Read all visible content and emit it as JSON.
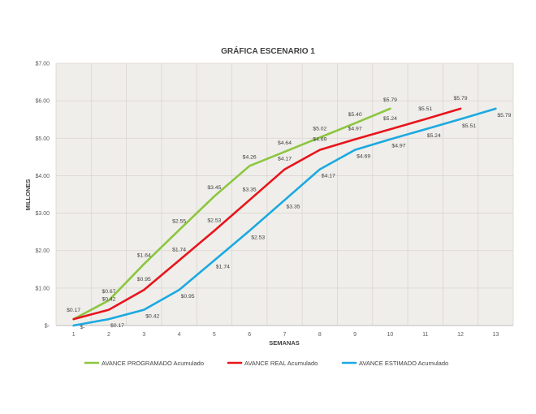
{
  "chart_data": {
    "type": "line",
    "title": "GRÁFICA ESCENARIO 1",
    "xlabel": "SEMANAS",
    "ylabel": "MILLONES",
    "x": [
      1,
      2,
      3,
      4,
      5,
      6,
      7,
      8,
      9,
      10,
      11,
      12,
      13
    ],
    "xlim": [
      0.5,
      13.5
    ],
    "ylim": [
      0,
      7
    ],
    "y_ticks": [
      {
        "value": 0,
        "label": "$-"
      },
      {
        "value": 1,
        "label": "$1.00"
      },
      {
        "value": 2,
        "label": "$2.00"
      },
      {
        "value": 3,
        "label": "$3.00"
      },
      {
        "value": 4,
        "label": "$4.00"
      },
      {
        "value": 5,
        "label": "$5.00"
      },
      {
        "value": 6,
        "label": "$6.00"
      },
      {
        "value": 7,
        "label": "$7.00"
      }
    ],
    "grid": true,
    "legend_position": "bottom",
    "background": "#efeeea",
    "grid_color": "#dcd4cf",
    "series": [
      {
        "name": "AVANCE PROGRAMADO Acumulado",
        "color": "#8cc63f",
        "x": [
          1,
          2,
          3,
          4,
          5,
          6,
          7,
          8,
          9,
          10
        ],
        "values": [
          0.17,
          0.67,
          1.64,
          2.55,
          3.45,
          4.26,
          4.64,
          5.02,
          5.4,
          5.79
        ],
        "labels": [
          "$0.17",
          "$0.67",
          "$1.64",
          "$2.55",
          "$3.45",
          "$4.26",
          "$4.64",
          "$5.02",
          "$5.40",
          "$5.79"
        ]
      },
      {
        "name": "AVANCE REAL Acumulado",
        "color": "#e8141c",
        "x": [
          1,
          2,
          3,
          4,
          5,
          6,
          7,
          8,
          9,
          10,
          11,
          12
        ],
        "values": [
          0.17,
          0.42,
          0.95,
          1.74,
          2.53,
          3.35,
          4.17,
          4.69,
          4.97,
          5.24,
          5.51,
          5.79
        ],
        "labels": [
          "",
          "$0.42",
          "$0.95",
          "$1.74",
          "$2.53",
          "$3.35",
          "$4.17",
          "$4.69",
          "$4.97",
          "$5.24",
          "$5.51",
          "$5.79"
        ]
      },
      {
        "name": "AVANCE ESTIMADO Acumulado",
        "color": "#1ba9e1",
        "x": [
          1,
          2,
          3,
          4,
          5,
          6,
          7,
          8,
          9,
          10,
          11,
          12,
          13
        ],
        "values": [
          0,
          0.17,
          0.42,
          0.95,
          1.74,
          2.53,
          3.35,
          4.17,
          4.69,
          4.97,
          5.24,
          5.51,
          5.79
        ],
        "labels": [
          "$-",
          "$0.17",
          "$0.42",
          "$0.95",
          "$1.74",
          "$2.53",
          "$3.35",
          "$4.17",
          "$4.69",
          "$4.97",
          "$5.24",
          "$5.51",
          "$5.79"
        ]
      }
    ]
  }
}
